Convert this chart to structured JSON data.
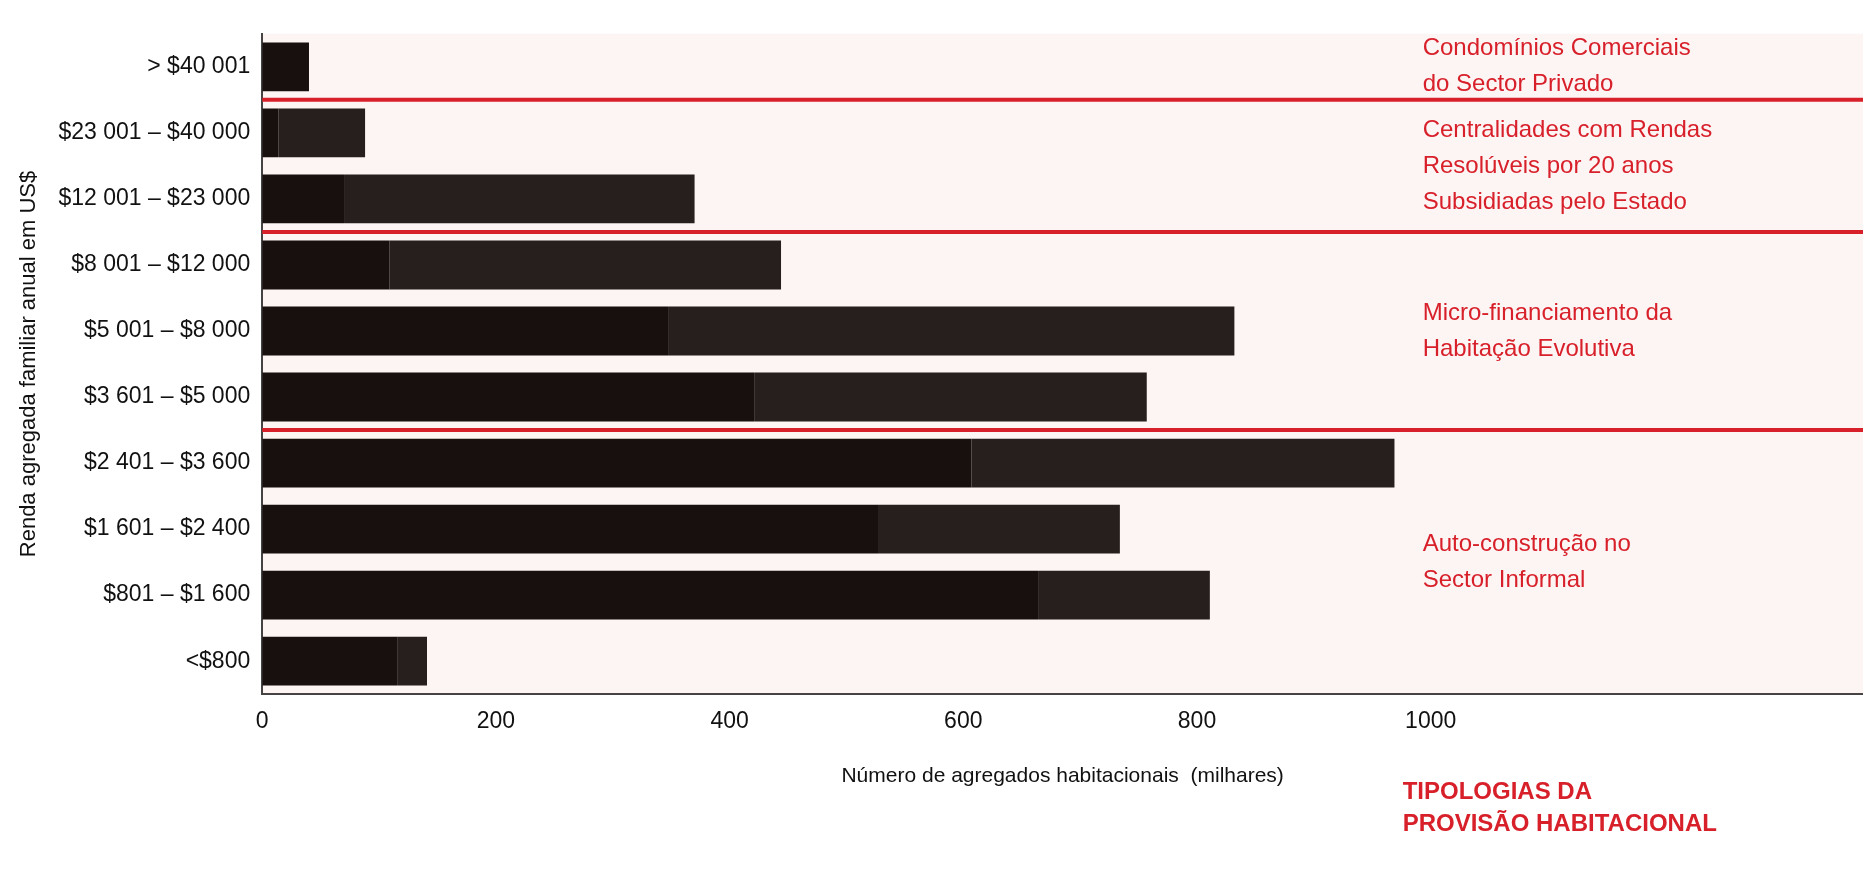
{
  "chart_data": {
    "type": "bar",
    "orientation": "horizontal",
    "stacked": true,
    "ylabel": "Renda agregada familiar anual em US$",
    "xlabel": "Número de agregados habitacionais  (milhares)",
    "categories": [
      "> $40 001",
      "$23 001 – $40 000",
      "$12 001 – $23 000",
      "$8 001 – $12 000",
      "$5 001 – $8 000",
      "$3 601 – $5 000",
      "$2 401 – $3 600",
      "$1 601 – $2 400",
      "$801 – $1 600",
      "<$800"
    ],
    "series": [
      {
        "color": "#0e0e0e",
        "values": [
          40,
          14,
          70,
          109,
          348,
          421,
          607,
          527,
          664,
          116
        ]
      },
      {
        "color": "#1e1e1e",
        "values": [
          0,
          74,
          300,
          335,
          484,
          336,
          362,
          207,
          147,
          25
        ]
      }
    ],
    "xlim": [
      0,
      1370
    ],
    "xticks": [
      0,
      200,
      400,
      600,
      800,
      1000
    ],
    "bands": [
      {
        "axis": "y",
        "from": "> $40 001",
        "to": "> $40 001",
        "label": "Condomínios Comerciais\ndo Sector Privado",
        "color": "#d8202a"
      },
      {
        "axis": "y",
        "from": "$23 001 – $40 000",
        "to": "$12 001 – $23 000",
        "label": "Centralidades com Rendas\nResolúveis por 20 anos\nSubsidiadas pelo Estado",
        "color": "#d8202a"
      },
      {
        "axis": "y",
        "from": "$8 001 – $12 000",
        "to": "$3 601 – $5 000",
        "label": "Micro-financiamento da\nHabitação Evolutiva",
        "color": "#d8202a"
      },
      {
        "axis": "y",
        "from": "$2 401 – $3 600",
        "to": "<$800",
        "label": "Auto-construção no\nSector Informal",
        "color": "#d8202a"
      }
    ],
    "annotations": [
      "TIPOLOGIAS DA\nPROVISÃO HABITACIONAL"
    ],
    "grid": false,
    "legend": false
  }
}
